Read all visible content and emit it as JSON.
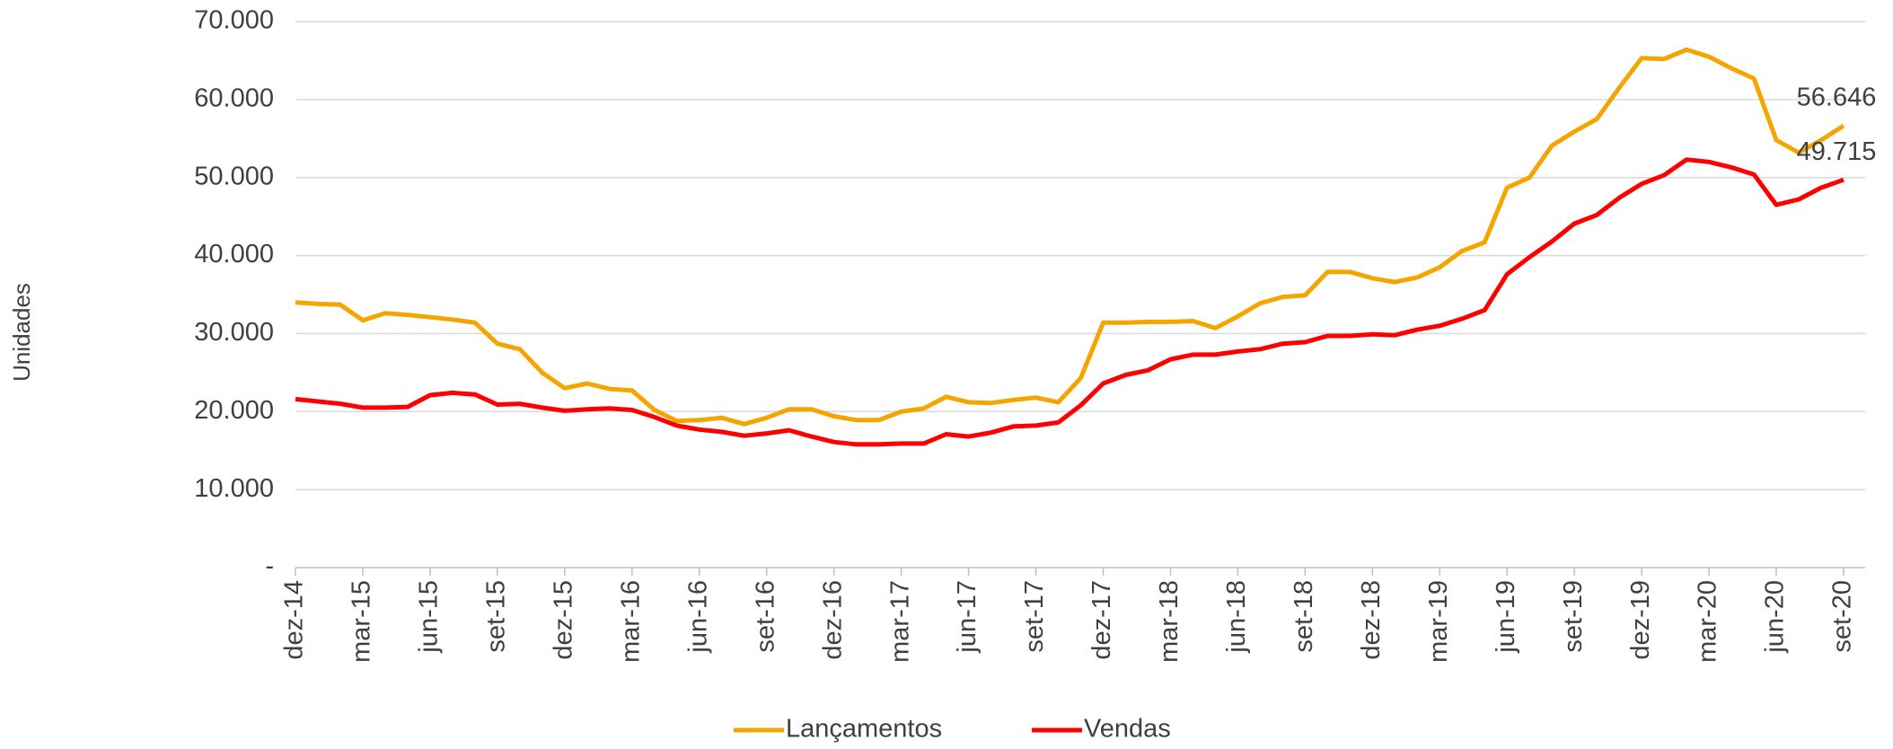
{
  "chart_data": {
    "type": "line",
    "y_axis_label": "Unidades",
    "categories": [
      "dez-14",
      null,
      null,
      "mar-15",
      null,
      null,
      "jun-15",
      null,
      null,
      "set-15",
      null,
      null,
      "dez-15",
      null,
      null,
      "mar-16",
      null,
      null,
      "jun-16",
      null,
      null,
      "set-16",
      null,
      null,
      "dez-16",
      null,
      null,
      "mar-17",
      null,
      null,
      "jun-17",
      null,
      null,
      "set-17",
      null,
      null,
      "dez-17",
      null,
      null,
      "mar-18",
      null,
      null,
      "jun-18",
      null,
      null,
      "set-18",
      null,
      null,
      "dez-18",
      null,
      null,
      "mar-19",
      null,
      null,
      "jun-19",
      null,
      null,
      "set-19",
      null,
      null,
      "dez-19",
      null,
      null,
      "mar-20",
      null,
      null,
      "jun-20",
      null,
      null,
      "set-20"
    ],
    "series": [
      {
        "name": "Lançamentos",
        "color": "#f5a500",
        "values": [
          34000,
          33800,
          33700,
          31700,
          32600,
          32400,
          32100,
          31800,
          31400,
          28700,
          28000,
          25000,
          23000,
          23600,
          22900,
          22700,
          20200,
          18800,
          18900,
          19200,
          18400,
          19200,
          20300,
          20300,
          19400,
          18900,
          18900,
          20000,
          20400,
          21900,
          21200,
          21100,
          21500,
          21800,
          21200,
          24300,
          31400,
          31400,
          31500,
          31500,
          31600,
          30700,
          32200,
          33900,
          34700,
          34900,
          37900,
          37900,
          37100,
          36600,
          37200,
          38500,
          40600,
          41700,
          48700,
          50000,
          54100,
          55900,
          57500,
          61500,
          65300,
          65200,
          66400,
          65500,
          64000,
          62700,
          54800,
          53200,
          54800,
          56646
        ],
        "value_labels": [
          null,
          null,
          null,
          null,
          null,
          null,
          null,
          null,
          null,
          null,
          null,
          null,
          null,
          null,
          null,
          null,
          null,
          null,
          null,
          null,
          null,
          null,
          null,
          null,
          null,
          null,
          null,
          null,
          null,
          null,
          null,
          null,
          null,
          null,
          null,
          null,
          null,
          null,
          null,
          null,
          null,
          null,
          null,
          null,
          null,
          null,
          null,
          null,
          null,
          null,
          null,
          null,
          null,
          null,
          null,
          null,
          null,
          null,
          null,
          null,
          null,
          null,
          null,
          null,
          null,
          null,
          null,
          null,
          null,
          "56.646"
        ]
      },
      {
        "name": "Vendas",
        "color": "#ff0000",
        "values": [
          21600,
          21300,
          21000,
          20500,
          20500,
          20600,
          22100,
          22400,
          22200,
          20900,
          21000,
          20500,
          20100,
          20300,
          20400,
          20200,
          19300,
          18200,
          17700,
          17400,
          16900,
          17200,
          17600,
          16800,
          16100,
          15800,
          15800,
          15900,
          15900,
          17100,
          16800,
          17300,
          18100,
          18200,
          18600,
          20800,
          23600,
          24700,
          25300,
          26700,
          27300,
          27300,
          27700,
          28000,
          28700,
          28900,
          29700,
          29700,
          29900,
          29800,
          30500,
          31000,
          31900,
          33000,
          37600,
          39800,
          41800,
          44100,
          45200,
          47400,
          49200,
          50300,
          52300,
          52000,
          51300,
          50400,
          46500,
          47200,
          48700,
          49715
        ],
        "value_labels": [
          null,
          null,
          null,
          null,
          null,
          null,
          null,
          null,
          null,
          null,
          null,
          null,
          null,
          null,
          null,
          null,
          null,
          null,
          null,
          null,
          null,
          null,
          null,
          null,
          null,
          null,
          null,
          null,
          null,
          null,
          null,
          null,
          null,
          null,
          null,
          null,
          null,
          null,
          null,
          null,
          null,
          null,
          null,
          null,
          null,
          null,
          null,
          null,
          null,
          null,
          null,
          null,
          null,
          null,
          null,
          null,
          null,
          null,
          null,
          null,
          null,
          null,
          null,
          null,
          null,
          null,
          null,
          null,
          null,
          "49.715"
        ]
      }
    ],
    "ylim": [
      0,
      70000
    ],
    "yticks": [
      {
        "value": 0,
        "label": "-"
      },
      {
        "value": 10000,
        "label": "10.000"
      },
      {
        "value": 20000,
        "label": "20.000"
      },
      {
        "value": 30000,
        "label": "30.000"
      },
      {
        "value": 40000,
        "label": "40.000"
      },
      {
        "value": 50000,
        "label": "50.000"
      },
      {
        "value": 60000,
        "label": "60.000"
      },
      {
        "value": 70000,
        "label": "70.000"
      }
    ],
    "grid": true,
    "legend": "bottom"
  }
}
